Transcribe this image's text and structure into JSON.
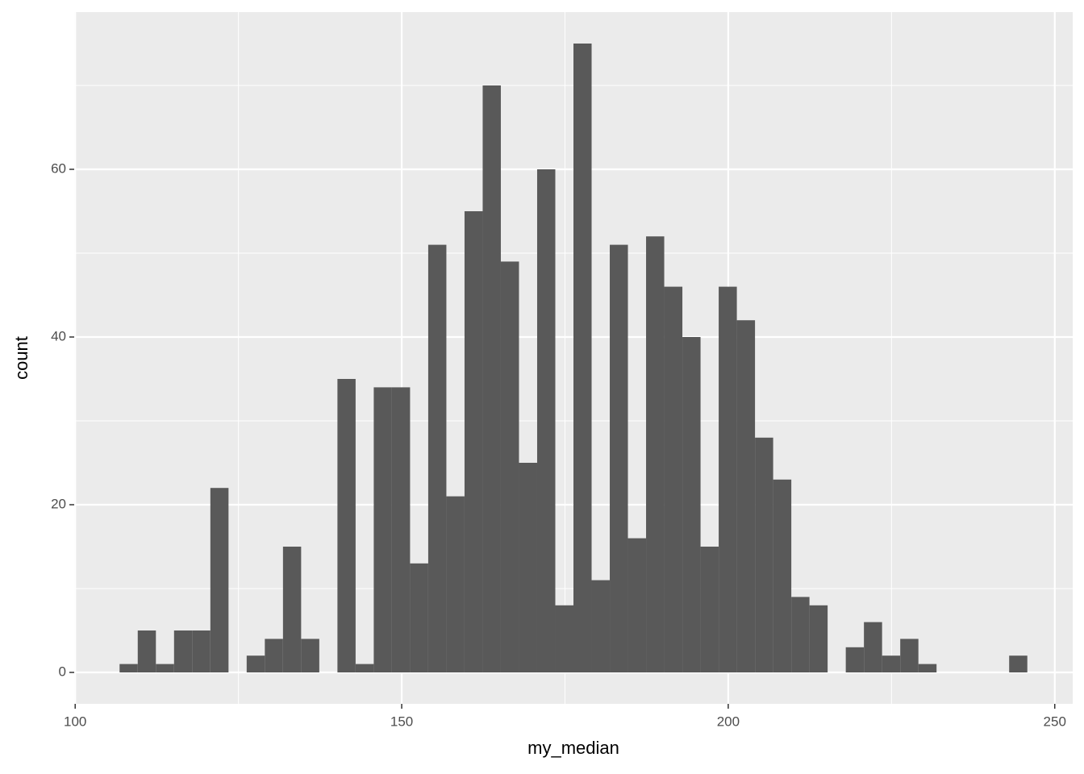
{
  "chart_data": {
    "type": "histogram",
    "x_label": "my_median",
    "y_label": "count",
    "bins": [
      106.8,
      109.58,
      112.36,
      115.14,
      117.92,
      120.7,
      123.48,
      126.26,
      129.04,
      131.82,
      134.6,
      137.38,
      140.16,
      142.94,
      145.72,
      148.5,
      151.28,
      154.06,
      156.84,
      159.62,
      162.4,
      165.18,
      167.96,
      170.74,
      173.52,
      176.3,
      179.08,
      181.86,
      184.64,
      187.42,
      190.2,
      192.98,
      195.76,
      198.54,
      201.32,
      204.1,
      206.88,
      209.66,
      212.44,
      215.22,
      218,
      220.78,
      223.56,
      226.34,
      229.12,
      231.9,
      234.68,
      237.46,
      240.24,
      243.02,
      245.8
    ],
    "counts": [
      1,
      5,
      1,
      5,
      5,
      22,
      0,
      2,
      4,
      15,
      4,
      0,
      35,
      1,
      34,
      34,
      13,
      51,
      21,
      55,
      70,
      49,
      25,
      60,
      8,
      75,
      11,
      51,
      16,
      52,
      46,
      40,
      15,
      46,
      42,
      28,
      23,
      9,
      8,
      0,
      3,
      6,
      2,
      4,
      1,
      0,
      0,
      0,
      0,
      2
    ],
    "color": "#595959",
    "xlim": [
      99.85,
      252.75
    ],
    "xticks": [
      100,
      150,
      200,
      250
    ],
    "xminor": [
      125,
      175,
      225
    ],
    "ylim": [
      -3.75,
      78.75
    ],
    "yticks": [
      0,
      20,
      40,
      60
    ],
    "yminor": [
      10,
      30,
      50,
      70
    ],
    "grid": true,
    "panel_color": "#ebebeb"
  }
}
